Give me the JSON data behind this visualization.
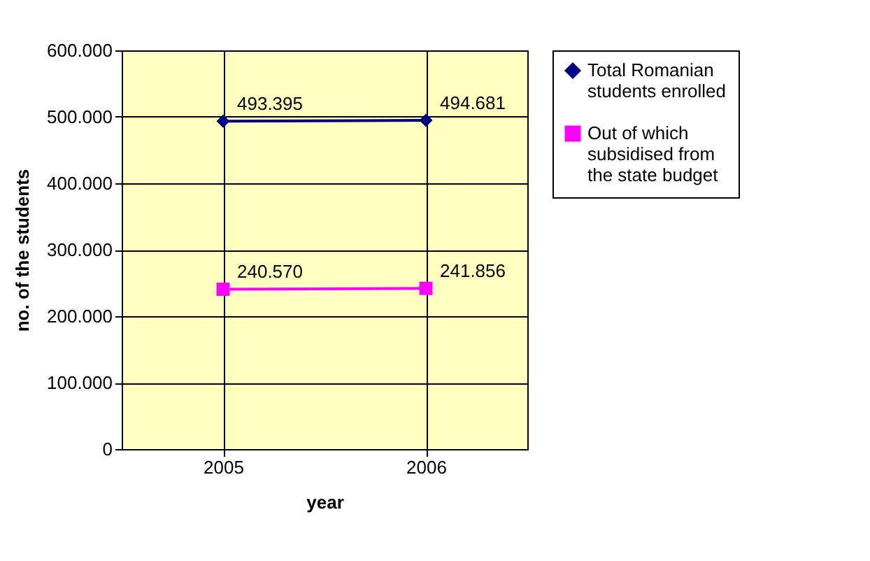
{
  "chart_data": {
    "type": "line",
    "xlabel": "year",
    "ylabel": "no. of the students",
    "categories": [
      "2005",
      "2006"
    ],
    "series": [
      {
        "name": "Total Romanian students enrolled",
        "color": "#000080",
        "marker": "diamond",
        "values": [
          493395,
          494681
        ],
        "value_labels": [
          "493.395",
          "494.681"
        ]
      },
      {
        "name": "Out of which subsidised from the state budget",
        "color": "#ff00ff",
        "marker": "square",
        "values": [
          240570,
          241856
        ],
        "value_labels": [
          "240.570",
          "241.856"
        ]
      }
    ],
    "ylim": [
      0,
      600000
    ],
    "yticks": [
      {
        "value": 0,
        "label": "0"
      },
      {
        "value": 100000,
        "label": "100.000"
      },
      {
        "value": 200000,
        "label": "200.000"
      },
      {
        "value": 300000,
        "label": "300.000"
      },
      {
        "value": 400000,
        "label": "400.000"
      },
      {
        "value": 500000,
        "label": "500.000"
      },
      {
        "value": 600000,
        "label": "600.000"
      }
    ],
    "grid": true,
    "legend": "right"
  }
}
